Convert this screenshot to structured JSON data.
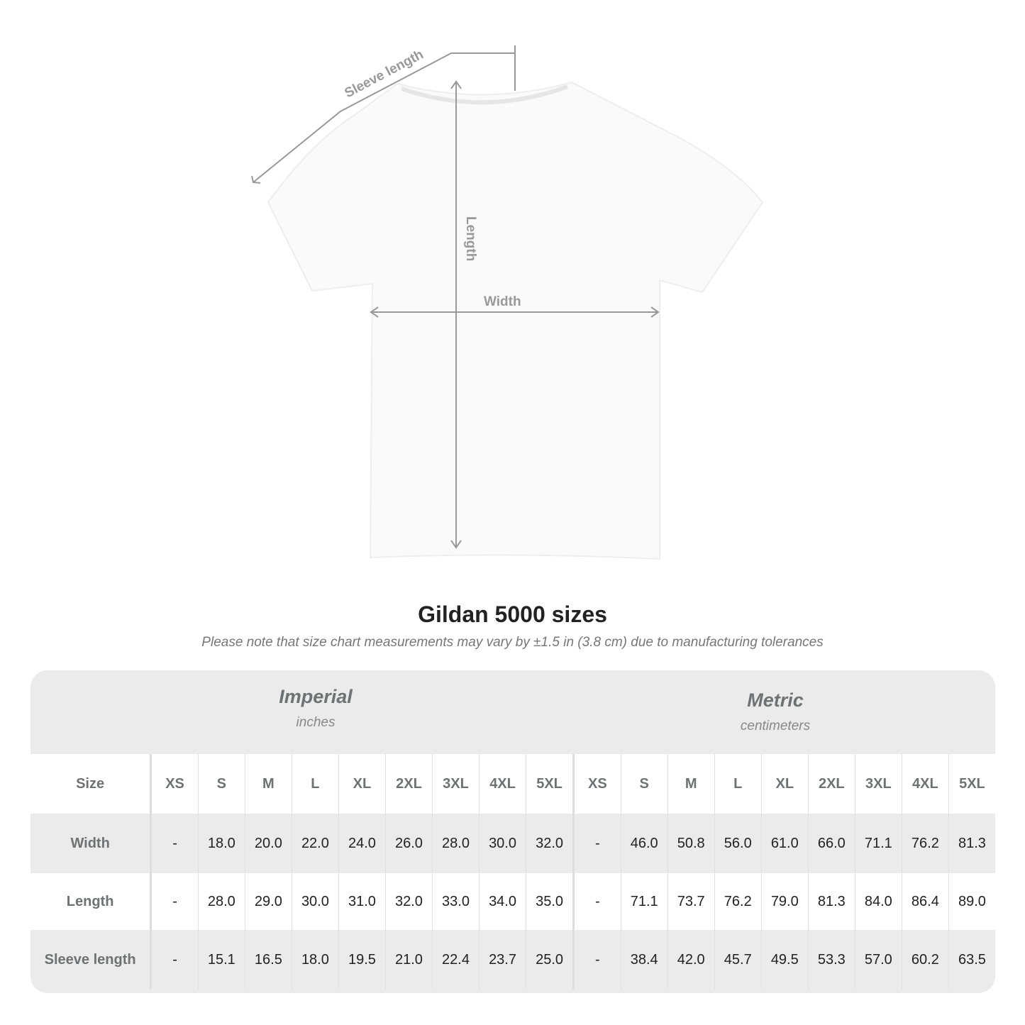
{
  "diagram": {
    "sleeve_label": "Sleeve length",
    "length_label": "Length",
    "width_label": "Width"
  },
  "title": "Gildan 5000 sizes",
  "note": "Please note that size chart measurements may vary by ±1.5 in (3.8 cm) due to manufacturing tolerances",
  "imperial": {
    "name": "Imperial",
    "unit": "inches"
  },
  "metric": {
    "name": "Metric",
    "unit": "centimeters"
  },
  "table": {
    "size_label": "Size",
    "sizes": [
      "XS",
      "S",
      "M",
      "L",
      "XL",
      "2XL",
      "3XL",
      "4XL",
      "5XL"
    ],
    "rows": [
      {
        "label": "Width",
        "imperial": [
          "-",
          "18.0",
          "20.0",
          "22.0",
          "24.0",
          "26.0",
          "28.0",
          "30.0",
          "32.0"
        ],
        "metric": [
          "-",
          "46.0",
          "50.8",
          "56.0",
          "61.0",
          "66.0",
          "71.1",
          "76.2",
          "81.3"
        ]
      },
      {
        "label": "Length",
        "imperial": [
          "-",
          "28.0",
          "29.0",
          "30.0",
          "31.0",
          "32.0",
          "33.0",
          "34.0",
          "35.0"
        ],
        "metric": [
          "-",
          "71.1",
          "73.7",
          "76.2",
          "79.0",
          "81.3",
          "84.0",
          "86.4",
          "89.0"
        ]
      },
      {
        "label": "Sleeve length",
        "imperial": [
          "-",
          "15.1",
          "16.5",
          "18.0",
          "19.5",
          "21.0",
          "22.4",
          "23.7",
          "25.0"
        ],
        "metric": [
          "-",
          "38.4",
          "42.0",
          "45.7",
          "49.5",
          "53.3",
          "57.0",
          "60.2",
          "63.5"
        ]
      }
    ]
  }
}
